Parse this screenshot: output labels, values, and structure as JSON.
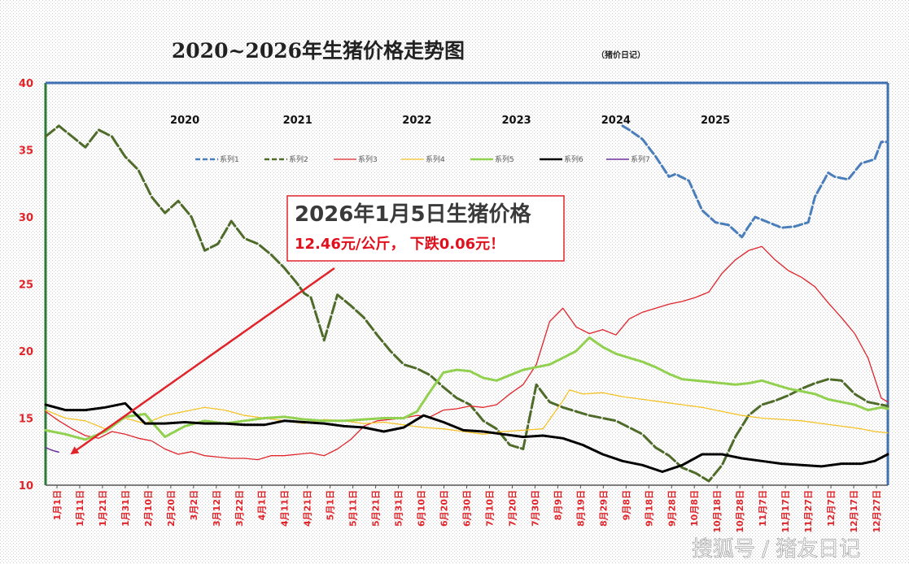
{
  "title": "2020~2026年生猪价格走势图",
  "subtitle": "（猪价日记）",
  "watermark": "搜狐号 / 猪友日记",
  "annotation": {
    "line1": "2026年1月5日生猪价格",
    "line2": "12.46元/公斤，  下跌0.06元！"
  },
  "year_labels": [
    {
      "text": "2020",
      "at": 21
    },
    {
      "text": "2021",
      "at": 38
    },
    {
      "text": "2022",
      "at": 56
    },
    {
      "text": "2023",
      "at": 71
    },
    {
      "text": "2024",
      "at": 86
    },
    {
      "text": "2025",
      "at": 101
    }
  ],
  "colors": {
    "axis_text": "#e0242a",
    "frame_left": "#2b7a3a",
    "frame_right": "#3f6fb0",
    "arrow": "#e0242a",
    "callout_border": "#e0242a"
  },
  "chart_data": {
    "type": "line",
    "title": "2020~2026年生猪价格走势图",
    "ylim": [
      10,
      40
    ],
    "yticks": [
      10,
      15,
      20,
      25,
      30,
      35,
      40
    ],
    "x_index_range": [
      0,
      127
    ],
    "categories": [
      "1月1日",
      "1月11日",
      "1月21日",
      "1月31日",
      "2月10日",
      "2月20日",
      "3月2日",
      "3月12日",
      "3月22日",
      "4月1日",
      "4月11日",
      "4月21日",
      "5月1日",
      "5月11日",
      "5月21日",
      "5月31日",
      "6月10日",
      "6月20日",
      "6月30日",
      "7月10日",
      "7月20日",
      "7月30日",
      "8月9日",
      "8月19日",
      "8月29日",
      "9月8日",
      "9月18日",
      "9月28日",
      "10月8日",
      "10月18日",
      "10月28日",
      "11月7日",
      "11月17日",
      "11月27日",
      "12月7日",
      "12月17日",
      "12月27日"
    ],
    "series": [
      {
        "name": "系列1",
        "color": "#4a7ebb",
        "dash": "10,4",
        "width": 3,
        "x": [
          87,
          88,
          90,
          92,
          94,
          95,
          97,
          99,
          101,
          103,
          105,
          106,
          107,
          108,
          109,
          111,
          113,
          115,
          116,
          118,
          119,
          121,
          123,
          125,
          126,
          127
        ],
        "y": [
          36.8,
          36.5,
          35.8,
          34.5,
          33.0,
          33.2,
          32.7,
          30.5,
          29.6,
          29.4,
          28.5,
          29.3,
          30.0,
          29.8,
          29.6,
          29.2,
          29.3,
          29.6,
          31.5,
          33.3,
          33.0,
          32.8,
          34.0,
          34.3,
          35.6,
          35.6
        ]
      },
      {
        "name": "系列2",
        "color": "#4e6b2a",
        "dash": "14,4",
        "width": 3,
        "x": [
          0,
          2,
          4,
          6,
          8,
          10,
          12,
          14,
          16,
          18,
          20,
          22,
          24,
          26,
          28,
          30,
          32,
          34,
          36,
          38,
          39,
          40,
          42,
          44,
          46,
          48,
          50,
          52,
          54,
          56,
          58,
          60,
          62,
          64,
          66,
          68,
          70,
          72,
          74,
          76,
          78,
          80,
          82,
          84,
          86,
          88,
          90,
          92,
          94,
          96,
          98,
          100,
          102,
          104,
          106,
          108,
          110,
          112,
          114,
          116,
          118,
          120,
          122,
          124,
          126,
          127
        ],
        "y": [
          36.0,
          36.8,
          36.0,
          35.2,
          36.5,
          36.0,
          34.5,
          33.5,
          31.5,
          30.3,
          31.2,
          30.0,
          27.5,
          28.0,
          29.7,
          28.4,
          28.0,
          27.2,
          26.2,
          25.0,
          24.3,
          24.0,
          20.8,
          24.2,
          23.4,
          22.5,
          21.2,
          20.0,
          19.0,
          18.7,
          18.2,
          17.3,
          16.5,
          16.0,
          14.8,
          14.2,
          13.0,
          12.7,
          17.5,
          16.2,
          15.8,
          15.5,
          15.2,
          15.0,
          14.8,
          14.3,
          13.8,
          12.8,
          12.2,
          11.3,
          10.9,
          10.3,
          11.5,
          13.6,
          15.2,
          16.0,
          16.3,
          16.7,
          17.2,
          17.6,
          17.9,
          17.8,
          16.8,
          16.2,
          16.0,
          15.9
        ]
      },
      {
        "name": "系列3",
        "color": "#e0242a",
        "dash": "",
        "width": 1.3,
        "x": [
          0,
          2,
          4,
          6,
          8,
          10,
          12,
          14,
          16,
          18,
          20,
          22,
          24,
          26,
          28,
          30,
          32,
          34,
          36,
          38,
          40,
          42,
          44,
          46,
          48,
          50,
          52,
          54,
          56,
          58,
          60,
          62,
          64,
          66,
          68,
          70,
          72,
          74,
          76,
          78,
          80,
          82,
          84,
          86,
          88,
          90,
          92,
          94,
          96,
          98,
          100,
          102,
          104,
          106,
          108,
          110,
          112,
          114,
          116,
          118,
          120,
          122,
          124,
          126,
          127
        ],
        "y": [
          15.5,
          14.8,
          14.2,
          13.7,
          13.5,
          14.0,
          13.8,
          13.5,
          13.3,
          12.7,
          12.3,
          12.5,
          12.2,
          12.1,
          12.0,
          12.0,
          11.9,
          12.2,
          12.2,
          12.3,
          12.4,
          12.2,
          12.7,
          13.4,
          14.4,
          14.8,
          14.9,
          15.0,
          15.2,
          15.1,
          15.6,
          15.7,
          15.9,
          15.8,
          16.0,
          16.8,
          17.5,
          19.0,
          22.2,
          23.2,
          21.8,
          21.3,
          21.6,
          21.2,
          22.4,
          22.9,
          23.2,
          23.5,
          23.7,
          24.0,
          24.4,
          25.8,
          26.8,
          27.5,
          27.8,
          26.8,
          26.0,
          25.5,
          24.8,
          23.6,
          22.5,
          21.3,
          19.5,
          16.5,
          16.2
        ]
      },
      {
        "name": "系列4",
        "color": "#f5c228",
        "dash": "",
        "width": 1.3,
        "x": [
          0,
          3,
          6,
          9,
          12,
          15,
          18,
          21,
          24,
          27,
          30,
          33,
          36,
          39,
          42,
          45,
          48,
          51,
          54,
          57,
          60,
          63,
          66,
          69,
          72,
          75,
          78,
          79,
          81,
          84,
          87,
          90,
          93,
          96,
          99,
          102,
          105,
          108,
          111,
          114,
          117,
          120,
          123,
          125,
          127
        ],
        "y": [
          15.6,
          15.0,
          14.8,
          14.2,
          15.0,
          14.6,
          15.2,
          15.5,
          15.8,
          15.6,
          15.2,
          15.0,
          14.8,
          14.6,
          14.9,
          14.8,
          14.6,
          14.7,
          14.5,
          14.3,
          14.2,
          14.0,
          13.8,
          14.0,
          14.1,
          14.2,
          16.3,
          17.1,
          16.8,
          16.9,
          16.6,
          16.4,
          16.2,
          16.0,
          15.8,
          15.5,
          15.2,
          15.0,
          14.9,
          14.8,
          14.6,
          14.4,
          14.2,
          14.0,
          13.9
        ]
      },
      {
        "name": "系列5",
        "color": "#92d050",
        "dash": "",
        "width": 3,
        "x": [
          0,
          3,
          6,
          9,
          12,
          15,
          18,
          21,
          24,
          27,
          30,
          33,
          36,
          39,
          42,
          45,
          48,
          51,
          54,
          56,
          58,
          60,
          62,
          64,
          66,
          68,
          70,
          72,
          74,
          76,
          78,
          80,
          82,
          84,
          86,
          88,
          90,
          92,
          94,
          96,
          98,
          100,
          102,
          104,
          106,
          108,
          110,
          112,
          114,
          116,
          118,
          120,
          122,
          124,
          126,
          127
        ],
        "y": [
          14.1,
          13.8,
          13.4,
          14.0,
          15.1,
          15.3,
          13.6,
          14.4,
          14.8,
          14.6,
          14.8,
          15.0,
          15.1,
          14.9,
          14.8,
          14.8,
          14.9,
          15.0,
          15.0,
          15.5,
          17.0,
          18.4,
          18.6,
          18.5,
          18.0,
          17.8,
          18.2,
          18.6,
          18.8,
          19.0,
          19.5,
          20.0,
          21.0,
          20.3,
          19.8,
          19.5,
          19.2,
          18.8,
          18.3,
          17.9,
          17.8,
          17.7,
          17.6,
          17.5,
          17.6,
          17.8,
          17.5,
          17.2,
          17.0,
          16.8,
          16.4,
          16.2,
          16.0,
          15.6,
          15.8,
          15.7
        ]
      },
      {
        "name": "系列6",
        "color": "#000000",
        "dash": "",
        "width": 3,
        "x": [
          0,
          3,
          6,
          9,
          12,
          15,
          18,
          21,
          24,
          27,
          30,
          33,
          36,
          39,
          42,
          45,
          48,
          51,
          54,
          57,
          60,
          63,
          66,
          69,
          72,
          75,
          78,
          81,
          84,
          87,
          90,
          93,
          96,
          99,
          102,
          105,
          108,
          111,
          114,
          117,
          120,
          123,
          125,
          127
        ],
        "y": [
          16.0,
          15.6,
          15.6,
          15.8,
          16.1,
          14.6,
          14.6,
          14.7,
          14.6,
          14.6,
          14.5,
          14.5,
          14.8,
          14.7,
          14.6,
          14.4,
          14.3,
          14.0,
          14.3,
          15.2,
          14.7,
          14.1,
          14.0,
          13.8,
          13.6,
          13.7,
          13.5,
          13.0,
          12.3,
          11.8,
          11.5,
          11.0,
          11.5,
          12.3,
          12.3,
          12.0,
          11.8,
          11.6,
          11.5,
          11.4,
          11.6,
          11.6,
          11.8,
          12.3
        ]
      },
      {
        "name": "系列7",
        "color": "#7030a0",
        "dash": "",
        "width": 1.5,
        "x": [
          0,
          1,
          2
        ],
        "y": [
          12.8,
          12.6,
          12.46
        ]
      }
    ]
  }
}
